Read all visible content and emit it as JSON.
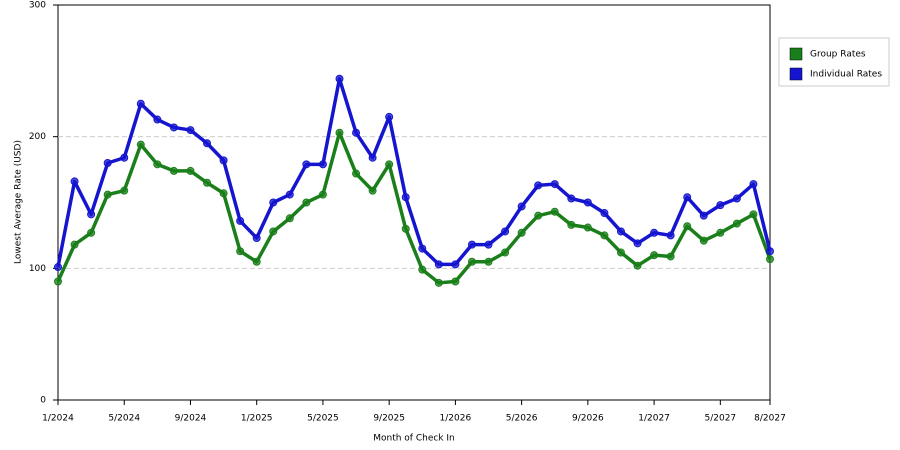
{
  "chart_data": {
    "type": "line",
    "x_label": "Month of Check In",
    "y_label": "Lowest Average Rate (USD)",
    "categories": [
      "1/2024",
      null,
      null,
      null,
      "5/2024",
      null,
      null,
      null,
      "9/2024",
      null,
      null,
      null,
      "1/2025",
      null,
      null,
      null,
      "5/2025",
      null,
      null,
      null,
      "9/2025",
      null,
      null,
      null,
      "1/2026",
      null,
      null,
      null,
      "5/2026",
      null,
      null,
      null,
      "9/2026",
      null,
      null,
      null,
      "1/2027",
      null,
      null,
      null,
      "5/2027",
      null,
      null,
      "8/2027"
    ],
    "series": [
      {
        "name": "Group Rates",
        "color": "#1a7f1a",
        "values": [
          90,
          118,
          127,
          156,
          159,
          194,
          179,
          174,
          174,
          165,
          157,
          113,
          105,
          128,
          138,
          150,
          156,
          203,
          172,
          159,
          179,
          130,
          99,
          89,
          90,
          105,
          105,
          112,
          127,
          140,
          143,
          133,
          131,
          125,
          112,
          102,
          110,
          109,
          132,
          121,
          127,
          134,
          141,
          107
        ]
      },
      {
        "name": "Individual Rates",
        "color": "#1515d0",
        "values": [
          101,
          166,
          141,
          180,
          184,
          225,
          213,
          207,
          205,
          195,
          182,
          136,
          123,
          150,
          156,
          179,
          179,
          244,
          203,
          184,
          215,
          154,
          115,
          103,
          103,
          118,
          118,
          128,
          147,
          163,
          164,
          153,
          150,
          142,
          128,
          119,
          127,
          125,
          154,
          140,
          148,
          153,
          164,
          113
        ]
      }
    ],
    "ylim": [
      0,
      300
    ],
    "yticks": [
      0,
      100,
      200,
      300
    ],
    "grid": true,
    "legend": "right"
  }
}
